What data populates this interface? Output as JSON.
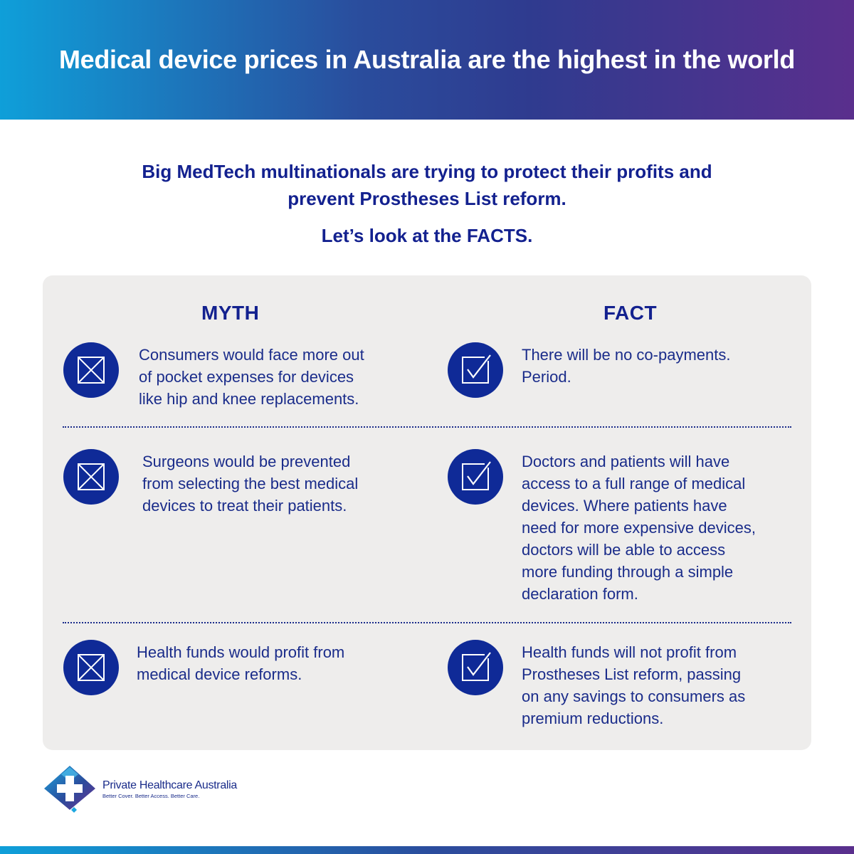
{
  "header": {
    "title": "Medical device prices in Australia are the highest in the world"
  },
  "intro": {
    "line1": "Big MedTech multinationals are trying to protect their profits and",
    "line2": "prevent Prostheses List reform.",
    "facts": "Let’s look at the FACTS."
  },
  "columns": {
    "myth": "MYTH",
    "fact": "FACT"
  },
  "rows": [
    {
      "myth": [
        "Consumers would face more out",
        "of pocket expenses for devices",
        "like hip and knee replacements."
      ],
      "fact": [
        "There will be no co-payments.",
        "Period."
      ]
    },
    {
      "myth": [
        "Surgeons would be prevented",
        "from selecting the best medical",
        "devices to treat their patients."
      ],
      "fact": [
        "Doctors and patients will have",
        "access to a full range of medical",
        "devices. Where patients have",
        "need for more expensive devices,",
        "doctors will be able to access",
        "more funding through a simple",
        "declaration form."
      ]
    },
    {
      "myth": [
        "Health funds would profit from",
        "medical device reforms."
      ],
      "fact": [
        "Health funds will not profit from",
        "Prostheses List reform, passing",
        "on any savings to consumers as",
        "premium reductions."
      ]
    }
  ],
  "logo": {
    "name_bold": "Private Healthcare",
    "name_rest": " Australia",
    "tagline": "Better Cover. Better Access. Better Care."
  },
  "colors": {
    "navy": "#13218f",
    "icon_blue": "#0f2a97",
    "panel": "#eeedec",
    "gradient_start": "#0f9fd9",
    "gradient_end": "#5a2f8d"
  }
}
